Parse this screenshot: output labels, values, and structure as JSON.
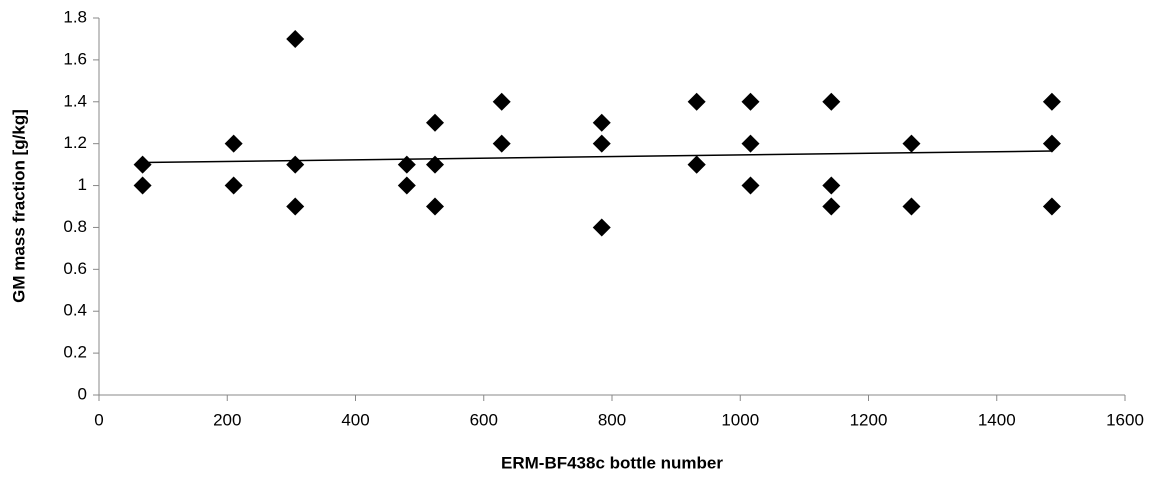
{
  "chart_data": {
    "type": "scatter",
    "x_label": "ERM-BF438c bottle number",
    "y_label": "GM mass fraction [g/kg]",
    "series": [
      {
        "color": "#000000",
        "x": [
          68,
          68,
          210,
          210,
          306,
          306,
          306,
          480,
          480,
          524,
          524,
          524,
          628,
          628,
          784,
          784,
          784,
          932,
          932,
          932,
          1016,
          1016,
          1016,
          1142,
          1142,
          1142,
          1267,
          1267,
          1486,
          1486,
          1486
        ],
        "values": [
          1.1,
          1.0,
          1.2,
          1.0,
          1.7,
          1.1,
          0.9,
          1.1,
          1.0,
          1.3,
          1.1,
          0.9,
          1.4,
          1.2,
          1.3,
          1.2,
          0.8,
          1.4,
          1.1,
          1.1,
          1.4,
          1.2,
          1.0,
          1.4,
          1.0,
          0.9,
          1.2,
          0.9,
          1.4,
          1.2,
          0.9
        ]
      }
    ],
    "trendline": {
      "color": "#000000",
      "x": [
        68,
        1486
      ],
      "values": [
        1.11,
        1.165
      ]
    },
    "xlim": [
      0,
      1600
    ],
    "xticks": [
      0,
      200,
      400,
      600,
      800,
      1000,
      1200,
      1400,
      1600
    ],
    "ylim": [
      0,
      1.8
    ],
    "yticks": [
      0,
      0.2,
      0.4,
      0.6,
      0.8,
      1,
      1.2,
      1.4,
      1.6,
      1.8
    ],
    "grid": false
  }
}
